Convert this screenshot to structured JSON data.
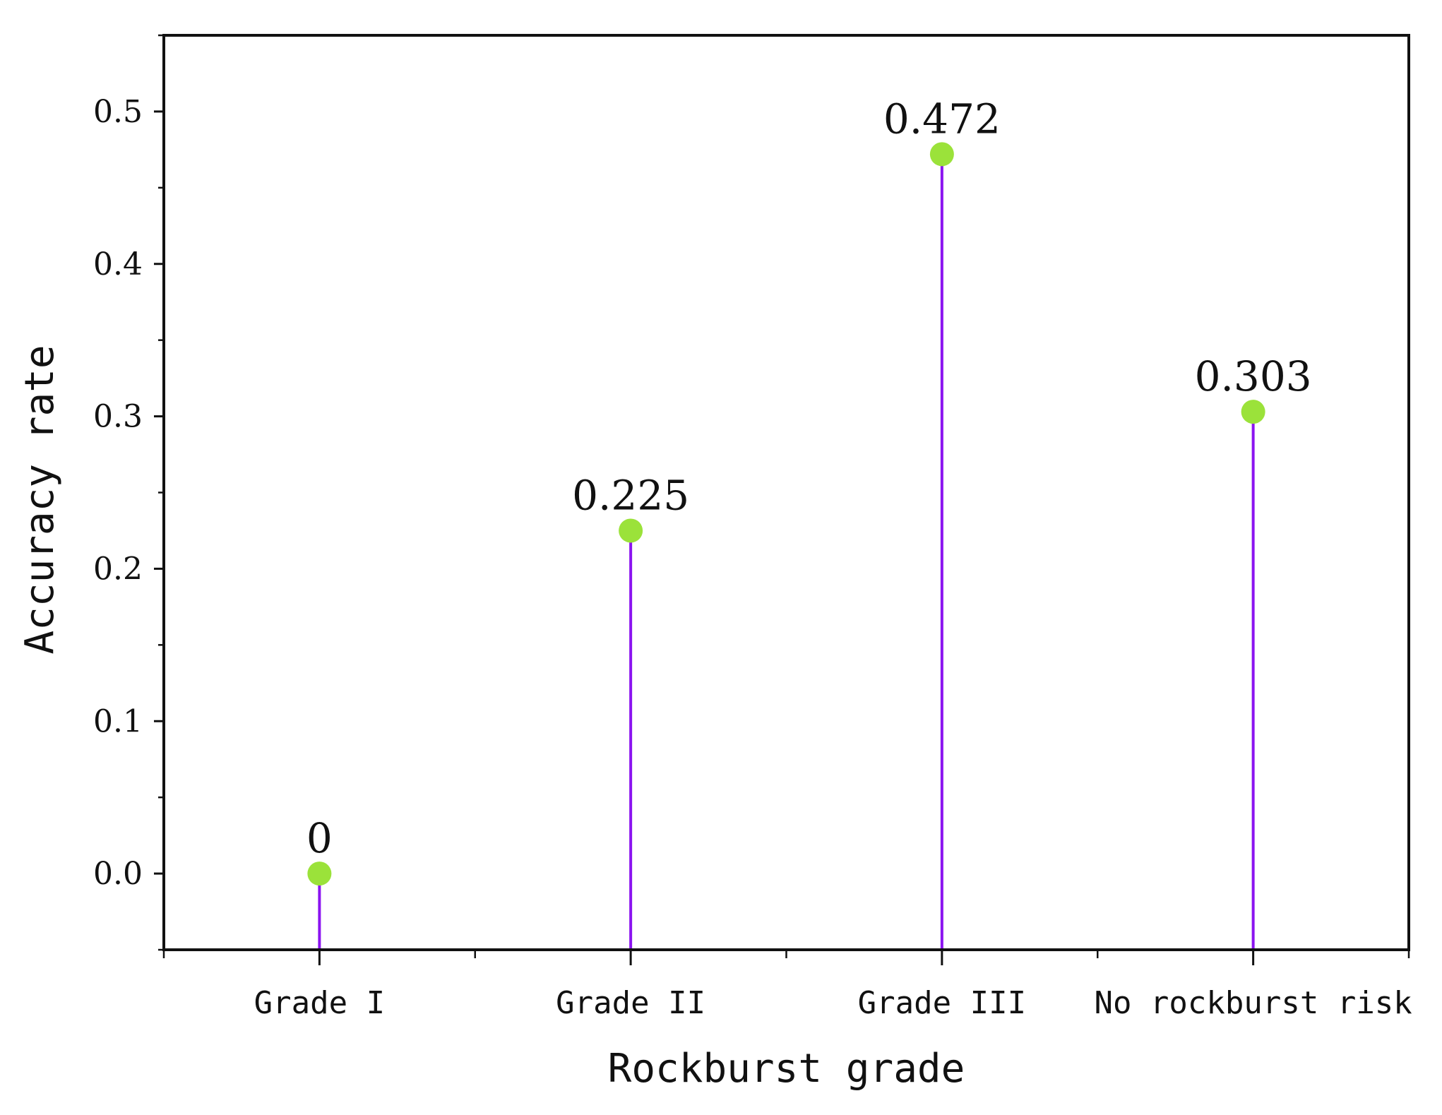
{
  "chart_data": {
    "type": "stem",
    "title": "",
    "xlabel": "Rockburst grade",
    "ylabel": "Accuracy rate",
    "categories": [
      "Grade I",
      "Grade  II",
      "Grade III",
      "No rockburst risk"
    ],
    "values": [
      0,
      0.225,
      0.472,
      0.303
    ],
    "data_labels": [
      "0",
      "0.225",
      "0.472",
      "0.303"
    ],
    "ylim": [
      -0.05,
      0.55
    ],
    "yticks": [
      0.0,
      0.1,
      0.2,
      0.3,
      0.4,
      0.5
    ],
    "ytick_labels": [
      "0.0",
      "0.1",
      "0.2",
      "0.3",
      "0.4",
      "0.5"
    ],
    "grid": false,
    "legend": "none",
    "colors": {
      "stem": "#8b14f0",
      "marker": "#9be23a",
      "axis": "#111111"
    }
  }
}
